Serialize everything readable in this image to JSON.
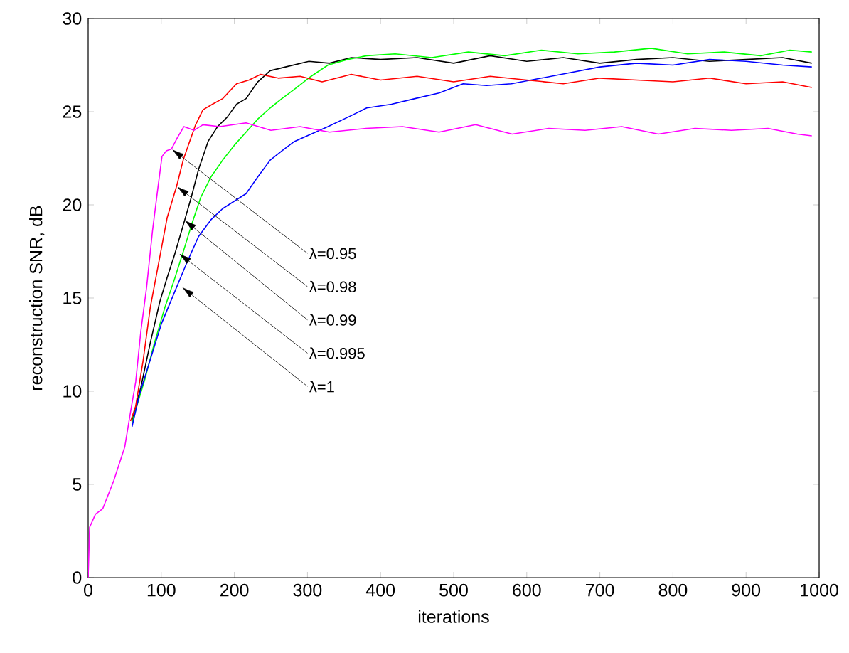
{
  "chart_data": {
    "type": "line",
    "xlabel": "iterations",
    "ylabel": "reconstruction SNR, dB",
    "xlim": [
      0,
      1000
    ],
    "ylim": [
      0,
      30
    ],
    "xticks": [
      0,
      100,
      200,
      300,
      400,
      500,
      600,
      700,
      800,
      900,
      1000
    ],
    "yticks": [
      0,
      5,
      10,
      15,
      20,
      25,
      30
    ],
    "grid": false,
    "marker": "none",
    "line_style": "solid",
    "series": [
      {
        "color": "#000000",
        "x": [
          60,
          72,
          85,
          98,
          108,
          118,
          130,
          141,
          151,
          164,
          177,
          190,
          203,
          216,
          232,
          249,
          270,
          302,
          330,
          360,
          400,
          450,
          500,
          550,
          600,
          650,
          700,
          750,
          800,
          850,
          900,
          950,
          990
        ],
        "values": [
          8.4,
          10.2,
          12.6,
          14.8,
          16.1,
          17.3,
          18.9,
          20.4,
          21.9,
          23.4,
          24.2,
          24.7,
          25.4,
          25.7,
          26.6,
          27.2,
          27.4,
          27.7,
          27.6,
          27.9,
          27.8,
          27.9,
          27.6,
          28.0,
          27.7,
          27.9,
          27.6,
          27.8,
          27.9,
          27.7,
          27.8,
          27.9,
          27.6
        ]
      },
      {
        "color": "#00ff00",
        "x": [
          60,
          68,
          78,
          90,
          105,
          118,
          131,
          142,
          154,
          168,
          184,
          200,
          216,
          232,
          249,
          265,
          282,
          305,
          328,
          355,
          381,
          420,
          470,
          520,
          570,
          620,
          670,
          720,
          770,
          820,
          870,
          920,
          960,
          990
        ],
        "values": [
          8.3,
          9.4,
          10.7,
          12.5,
          14.5,
          16.0,
          17.6,
          19.0,
          20.4,
          21.5,
          22.4,
          23.2,
          23.9,
          24.6,
          25.2,
          25.7,
          26.2,
          26.9,
          27.5,
          27.8,
          28.0,
          28.1,
          27.9,
          28.2,
          28.0,
          28.3,
          28.1,
          28.2,
          28.4,
          28.1,
          28.2,
          28.0,
          28.3,
          28.2
        ]
      },
      {
        "color": "#0000ff",
        "x": [
          60,
          70,
          85,
          100,
          118,
          135,
          151,
          168,
          184,
          200,
          216,
          232,
          249,
          265,
          282,
          305,
          328,
          355,
          381,
          415,
          447,
          480,
          513,
          545,
          579,
          620,
          660,
          700,
          750,
          800,
          850,
          900,
          950,
          990
        ],
        "values": [
          8.1,
          9.8,
          11.7,
          13.6,
          15.3,
          16.9,
          18.3,
          19.2,
          19.8,
          20.2,
          20.6,
          21.5,
          22.4,
          22.9,
          23.4,
          23.8,
          24.2,
          24.7,
          25.2,
          25.4,
          25.7,
          26.0,
          26.5,
          26.4,
          26.5,
          26.8,
          27.1,
          27.4,
          27.6,
          27.5,
          27.8,
          27.7,
          27.5,
          27.4
        ]
      },
      {
        "color": "#ff0000",
        "x": [
          58,
          65,
          75,
          85,
          97,
          108,
          121,
          130,
          137,
          147,
          157,
          170,
          184,
          203,
          220,
          236,
          260,
          290,
          320,
          360,
          400,
          450,
          500,
          550,
          600,
          650,
          700,
          750,
          800,
          850,
          900,
          950,
          990
        ],
        "values": [
          8.4,
          9.2,
          11.6,
          14.5,
          17.0,
          19.3,
          21.0,
          22.4,
          23.2,
          24.3,
          25.1,
          25.4,
          25.7,
          26.5,
          26.7,
          27.0,
          26.8,
          26.9,
          26.6,
          27.0,
          26.7,
          26.9,
          26.6,
          26.9,
          26.7,
          26.5,
          26.8,
          26.7,
          26.6,
          26.8,
          26.5,
          26.6,
          26.3
        ]
      },
      {
        "color": "#ff00ff",
        "x": [
          0,
          2,
          10,
          20,
          35,
          50,
          58,
          65,
          72,
          80,
          88,
          95,
          101,
          107,
          114,
          122,
          131,
          145,
          157,
          180,
          216,
          250,
          290,
          330,
          380,
          430,
          480,
          530,
          580,
          630,
          680,
          730,
          780,
          830,
          880,
          930,
          970,
          990
        ],
        "values": [
          0,
          2.7,
          3.4,
          3.7,
          5.2,
          7.0,
          8.9,
          10.5,
          13.2,
          15.6,
          18.6,
          20.8,
          22.6,
          22.9,
          23.0,
          23.6,
          24.2,
          24.0,
          24.3,
          24.2,
          24.4,
          24.0,
          24.2,
          23.9,
          24.1,
          24.2,
          23.9,
          24.3,
          23.8,
          24.1,
          24.0,
          24.2,
          23.8,
          24.1,
          24.0,
          24.1,
          23.8,
          23.7
        ]
      }
    ],
    "annotations": [
      {
        "text": "λ=0.95",
        "x": 114,
        "y": 23.0
      },
      {
        "text": "λ=0.98",
        "x": 121,
        "y": 21.0
      },
      {
        "text": "λ=0.99",
        "x": 131,
        "y": 19.2
      },
      {
        "text": "λ=0.995",
        "x": 124,
        "y": 17.4
      },
      {
        "text": "λ=1",
        "x": 128,
        "y": 15.6
      }
    ]
  }
}
